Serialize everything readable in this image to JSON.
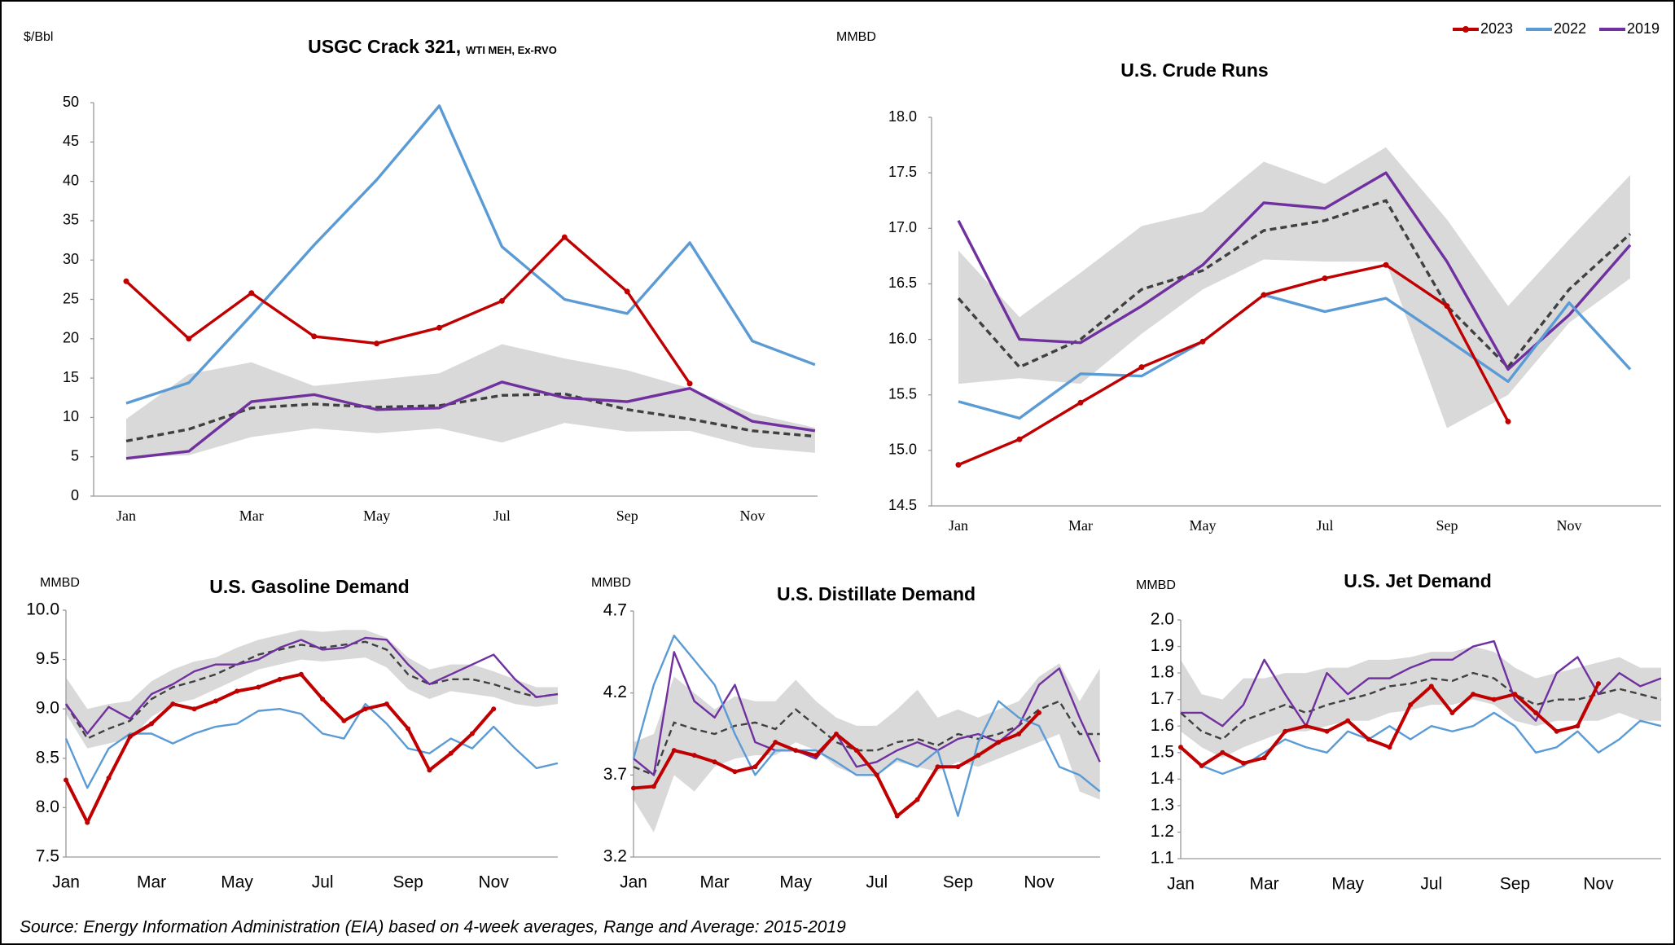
{
  "source": "Source: Energy Information Administration (EIA) based on 4-week averages, Range and Average: 2015-2019",
  "chart_data": [
    {
      "type": "line",
      "title": "USGC Crack 321,",
      "subtitle": "WTI MEH, Ex-RVO",
      "y_label": "$/Bbl",
      "categories": [
        "Jan",
        null,
        "Mar",
        null,
        "May",
        null,
        "Jul",
        null,
        "Sep",
        null,
        "Nov",
        null
      ],
      "ylim": [
        0,
        50
      ],
      "yticks": [
        0,
        5,
        10,
        15,
        20,
        25,
        30,
        35,
        40,
        45,
        50
      ],
      "range": {
        "color": "#d9d9d9",
        "low": [
          4.9,
          5.2,
          7.5,
          8.6,
          8,
          8.6,
          6.8,
          9.3,
          8.2,
          8.3,
          6.2,
          5.5
        ],
        "high": [
          9.8,
          15.5,
          17,
          14,
          14.8,
          15.6,
          19.3,
          17.5,
          16,
          13.7,
          10.5,
          8.7
        ]
      },
      "average": {
        "color": "#404040",
        "values": [
          7,
          8.5,
          11.2,
          11.7,
          11.3,
          11.5,
          12.8,
          13,
          11,
          9.8,
          8.3,
          7.6
        ]
      },
      "series": [
        {
          "name": "2023",
          "color": "#c00000",
          "markers": true,
          "values": [
            27.3,
            20,
            25.8,
            20.3,
            19.4,
            21.4,
            24.8,
            32.9,
            26,
            14.3,
            null,
            null
          ]
        },
        {
          "name": "2022",
          "color": "#5b9bd5",
          "values": [
            11.8,
            14.4,
            23,
            31.9,
            40.2,
            49.6,
            31.7,
            25,
            23.2,
            32.2,
            19.7,
            16.7
          ]
        },
        {
          "name": "2019",
          "color": "#7030a0",
          "values": [
            4.8,
            5.7,
            12,
            12.9,
            11,
            11.2,
            14.5,
            12.5,
            12,
            13.7,
            9.5,
            8.3
          ]
        }
      ]
    },
    {
      "type": "line",
      "title": "U.S. Crude Runs",
      "y_label": "MMBD",
      "legend": "top-right",
      "categories": [
        "Jan",
        null,
        "Mar",
        null,
        "May",
        null,
        "Jul",
        null,
        "Sep",
        null,
        "Nov",
        null
      ],
      "ylim": [
        14.5,
        18
      ],
      "yticks": [
        14.5,
        {
          "value": 15,
          "label": "15.0"
        },
        15.5,
        {
          "value": 16,
          "label": "16.0"
        },
        16.5,
        {
          "value": 17,
          "label": "17.0"
        },
        17.5,
        {
          "value": 18,
          "label": "18.0"
        }
      ],
      "range": {
        "color": "#d9d9d9",
        "low": [
          15.6,
          15.65,
          15.6,
          16.05,
          16.45,
          16.72,
          16.7,
          16.7,
          15.2,
          15.5,
          16.15,
          16.55
        ],
        "high": [
          16.8,
          16.2,
          16.6,
          17.02,
          17.15,
          17.6,
          17.4,
          17.73,
          17.08,
          16.3,
          16.9,
          17.48
        ]
      },
      "average": {
        "color": "#404040",
        "values": [
          16.37,
          15.75,
          16,
          16.45,
          16.62,
          16.98,
          17.07,
          17.25,
          16.3,
          15.75,
          16.45,
          16.95
        ]
      },
      "series": [
        {
          "name": "2023",
          "color": "#c00000",
          "markers": true,
          "values": [
            14.87,
            15.1,
            15.43,
            15.75,
            15.98,
            16.4,
            16.55,
            16.67,
            16.3,
            15.26,
            null,
            null
          ]
        },
        {
          "name": "2022",
          "color": "#5b9bd5",
          "values": [
            15.44,
            15.29,
            15.69,
            15.67,
            15.98,
            16.4,
            16.25,
            16.37,
            16,
            15.62,
            16.33,
            15.73
          ]
        },
        {
          "name": "2019",
          "color": "#7030a0",
          "values": [
            17.07,
            16,
            15.97,
            16.3,
            16.67,
            17.23,
            17.18,
            17.5,
            16.7,
            15.73,
            16.22,
            16.85
          ]
        }
      ]
    },
    {
      "type": "line",
      "title": "U.S. Gasoline Demand",
      "y_label": "MMBD",
      "categories": [
        "Jan",
        null,
        null,
        null,
        "Mar",
        null,
        null,
        null,
        "May",
        null,
        null,
        null,
        "Jul",
        null,
        null,
        null,
        "Sep",
        null,
        null,
        null,
        "Nov",
        null,
        null,
        null
      ],
      "ylim": [
        7.5,
        10
      ],
      "yticks": [
        7.5,
        {
          "value": 8,
          "label": "8.0"
        },
        8.5,
        {
          "value": 9,
          "label": "9.0"
        },
        9.5,
        {
          "value": 10,
          "label": "10.0"
        }
      ],
      "range": {
        "color": "#d9d9d9",
        "low": [
          8.95,
          8.6,
          8.65,
          8.7,
          8.92,
          9.05,
          9.1,
          9.2,
          9.3,
          9.4,
          9.45,
          9.5,
          9.48,
          9.5,
          9.52,
          9.42,
          9.2,
          9.1,
          9.18,
          9.15,
          9.12,
          9.05,
          9.02,
          9.05
        ],
        "high": [
          9.32,
          9,
          9.05,
          9.08,
          9.28,
          9.4,
          9.48,
          9.52,
          9.62,
          9.7,
          9.75,
          9.8,
          9.78,
          9.8,
          9.8,
          9.72,
          9.52,
          9.4,
          9.45,
          9.45,
          9.38,
          9.3,
          9.22,
          9.22
        ]
      },
      "average": {
        "color": "#404040",
        "values": [
          9.05,
          8.7,
          8.8,
          8.88,
          9.1,
          9.22,
          9.28,
          9.35,
          9.45,
          9.55,
          9.6,
          9.65,
          9.62,
          9.65,
          9.68,
          9.6,
          9.35,
          9.25,
          9.3,
          9.3,
          9.25,
          9.18,
          9.12,
          9.15
        ]
      },
      "series": [
        {
          "name": "2023",
          "color": "#c00000",
          "markers": true,
          "values": [
            8.28,
            7.85,
            8.3,
            8.72,
            8.85,
            9.05,
            9,
            9.08,
            9.18,
            9.22,
            9.3,
            9.35,
            9.1,
            8.88,
            9,
            9.05,
            8.8,
            8.38,
            8.55,
            8.75,
            9,
            null,
            null,
            null
          ]
        },
        {
          "name": "2022",
          "color": "#5b9bd5",
          "values": [
            8.7,
            8.2,
            8.6,
            8.75,
            8.75,
            8.65,
            8.75,
            8.82,
            8.85,
            8.98,
            9,
            8.95,
            8.75,
            8.7,
            9.05,
            8.85,
            8.6,
            8.55,
            8.7,
            8.6,
            8.82,
            8.6,
            8.4,
            8.45
          ]
        },
        {
          "name": "2019",
          "color": "#7030a0",
          "values": [
            9.05,
            8.75,
            9.02,
            8.9,
            9.15,
            9.25,
            9.38,
            9.45,
            9.45,
            9.5,
            9.62,
            9.7,
            9.6,
            9.62,
            9.72,
            9.7,
            9.45,
            9.25,
            9.35,
            9.45,
            9.55,
            9.3,
            9.12,
            9.15
          ]
        }
      ]
    },
    {
      "type": "line",
      "title": "U.S. Distillate Demand",
      "y_label": "MMBD",
      "categories": [
        "Jan",
        null,
        null,
        null,
        "Mar",
        null,
        null,
        null,
        "May",
        null,
        null,
        null,
        "Jul",
        null,
        null,
        null,
        "Sep",
        null,
        null,
        null,
        "Nov",
        null,
        null,
        null
      ],
      "ylim": [
        3.2,
        4.7
      ],
      "yticks": [
        3.2,
        3.7,
        4.2,
        4.7
      ],
      "range": {
        "color": "#d9d9d9",
        "low": [
          3.55,
          3.35,
          3.7,
          3.6,
          3.75,
          3.8,
          3.82,
          3.82,
          3.9,
          3.85,
          3.75,
          3.7,
          3.7,
          3.78,
          3.75,
          3.72,
          3.78,
          3.75,
          3.8,
          3.85,
          3.9,
          3.95,
          3.6,
          3.55
        ],
        "high": [
          3.9,
          3.95,
          4.3,
          4.2,
          4.1,
          4.18,
          4.15,
          4.15,
          4.28,
          4.15,
          4.05,
          4,
          4,
          4.1,
          4.22,
          4.05,
          4.1,
          4.05,
          4.1,
          4.15,
          4.3,
          4.38,
          4.15,
          4.35
        ]
      },
      "average": {
        "color": "#404040",
        "values": [
          3.75,
          3.7,
          4.02,
          3.98,
          3.95,
          4,
          4.02,
          3.98,
          4.1,
          4,
          3.9,
          3.85,
          3.85,
          3.9,
          3.92,
          3.88,
          3.95,
          3.92,
          3.95,
          4,
          4.1,
          4.15,
          3.95,
          3.95
        ]
      },
      "series": [
        {
          "name": "2023",
          "color": "#c00000",
          "markers": true,
          "values": [
            3.62,
            3.63,
            3.85,
            3.82,
            3.78,
            3.72,
            3.75,
            3.9,
            3.85,
            3.82,
            3.95,
            3.85,
            3.7,
            3.45,
            3.55,
            3.75,
            3.75,
            3.82,
            3.9,
            3.95,
            4.08,
            null,
            null,
            null
          ]
        },
        {
          "name": "2022",
          "color": "#5b9bd5",
          "values": [
            3.8,
            4.25,
            4.55,
            4.4,
            4.25,
            3.95,
            3.7,
            3.85,
            3.85,
            3.85,
            3.78,
            3.7,
            3.7,
            3.8,
            3.75,
            3.85,
            3.45,
            3.9,
            4.15,
            4.05,
            4,
            3.75,
            3.7,
            3.6
          ]
        },
        {
          "name": "2019",
          "color": "#7030a0",
          "values": [
            3.8,
            3.7,
            4.45,
            4.15,
            4.05,
            4.25,
            3.9,
            3.85,
            3.85,
            3.8,
            3.95,
            3.75,
            3.78,
            3.85,
            3.9,
            3.85,
            3.92,
            3.95,
            3.9,
            4,
            4.25,
            4.35,
            4.05,
            3.78
          ]
        }
      ]
    },
    {
      "type": "line",
      "title": "U.S. Jet Demand",
      "y_label": "MMBD",
      "categories": [
        "Jan",
        null,
        null,
        null,
        "Mar",
        null,
        null,
        null,
        "May",
        null,
        null,
        null,
        "Jul",
        null,
        null,
        null,
        "Sep",
        null,
        null,
        null,
        "Nov",
        null,
        null,
        null
      ],
      "ylim": [
        1.1,
        2
      ],
      "yticks": [
        1.1,
        1.2,
        1.3,
        1.4,
        1.5,
        1.6,
        1.7,
        1.8,
        1.9,
        {
          "value": 2,
          "label": "2.0"
        }
      ],
      "range": {
        "color": "#d9d9d9",
        "low": [
          1.58,
          1.52,
          1.48,
          1.52,
          1.55,
          1.58,
          1.58,
          1.6,
          1.62,
          1.62,
          1.65,
          1.66,
          1.68,
          1.68,
          1.7,
          1.68,
          1.62,
          1.6,
          1.62,
          1.62,
          1.62,
          1.65,
          1.62,
          1.62
        ],
        "high": [
          1.85,
          1.72,
          1.7,
          1.78,
          1.78,
          1.8,
          1.8,
          1.82,
          1.82,
          1.85,
          1.85,
          1.86,
          1.88,
          1.88,
          1.9,
          1.88,
          1.82,
          1.78,
          1.8,
          1.82,
          1.84,
          1.86,
          1.82,
          1.82
        ]
      },
      "average": {
        "color": "#404040",
        "values": [
          1.65,
          1.58,
          1.55,
          1.62,
          1.65,
          1.68,
          1.65,
          1.68,
          1.7,
          1.72,
          1.75,
          1.76,
          1.78,
          1.77,
          1.8,
          1.78,
          1.72,
          1.68,
          1.7,
          1.7,
          1.72,
          1.74,
          1.72,
          1.7
        ]
      },
      "series": [
        {
          "name": "2023",
          "color": "#c00000",
          "markers": true,
          "values": [
            1.52,
            1.45,
            1.5,
            1.46,
            1.48,
            1.58,
            1.6,
            1.58,
            1.62,
            1.55,
            1.52,
            1.68,
            1.75,
            1.65,
            1.72,
            1.7,
            1.72,
            1.65,
            1.58,
            1.6,
            1.76,
            null,
            null,
            null
          ]
        },
        {
          "name": "2022",
          "color": "#5b9bd5",
          "values": [
            1.52,
            1.45,
            1.42,
            1.45,
            1.5,
            1.55,
            1.52,
            1.5,
            1.58,
            1.55,
            1.6,
            1.55,
            1.6,
            1.58,
            1.6,
            1.65,
            1.6,
            1.5,
            1.52,
            1.58,
            1.5,
            1.55,
            1.62,
            1.6
          ]
        },
        {
          "name": "2019",
          "color": "#7030a0",
          "values": [
            1.65,
            1.65,
            1.6,
            1.68,
            1.85,
            1.72,
            1.6,
            1.8,
            1.72,
            1.78,
            1.78,
            1.82,
            1.85,
            1.85,
            1.9,
            1.92,
            1.7,
            1.62,
            1.8,
            1.86,
            1.72,
            1.8,
            1.75,
            1.78
          ]
        }
      ]
    }
  ]
}
